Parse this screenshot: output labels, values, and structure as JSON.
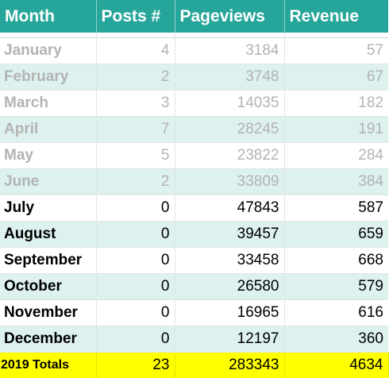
{
  "table": {
    "headers": {
      "month": "Month",
      "posts": "Posts #",
      "pageviews": "Pageviews",
      "revenue": "Revenue"
    },
    "rows": [
      {
        "month": "January",
        "posts": "4",
        "pageviews": "3184",
        "revenue": "57",
        "style": "past"
      },
      {
        "month": "February",
        "posts": "2",
        "pageviews": "3748",
        "revenue": "67",
        "style": "past"
      },
      {
        "month": "March",
        "posts": "3",
        "pageviews": "14035",
        "revenue": "182",
        "style": "past"
      },
      {
        "month": "April",
        "posts": "7",
        "pageviews": "28245",
        "revenue": "191",
        "style": "past"
      },
      {
        "month": "May",
        "posts": "5",
        "pageviews": "23822",
        "revenue": "284",
        "style": "past"
      },
      {
        "month": "June",
        "posts": "2",
        "pageviews": "33809",
        "revenue": "384",
        "style": "past"
      },
      {
        "month": "July",
        "posts": "0",
        "pageviews": "47843",
        "revenue": "587",
        "style": "current"
      },
      {
        "month": "August",
        "posts": "0",
        "pageviews": "39457",
        "revenue": "659",
        "style": "current"
      },
      {
        "month": "September",
        "posts": "0",
        "pageviews": "33458",
        "revenue": "668",
        "style": "current"
      },
      {
        "month": "October",
        "posts": "0",
        "pageviews": "26580",
        "revenue": "579",
        "style": "current"
      },
      {
        "month": "November",
        "posts": "0",
        "pageviews": "16965",
        "revenue": "616",
        "style": "current"
      },
      {
        "month": "December",
        "posts": "0",
        "pageviews": "12197",
        "revenue": "360",
        "style": "current"
      }
    ],
    "totals": {
      "label": "2019 Totals",
      "posts": "23",
      "pageviews": "283343",
      "revenue": "4634"
    }
  },
  "colors": {
    "header_bg": "#26a69a",
    "header_text": "#ffffff",
    "alt_row_bg": "#ddf1ef",
    "past_text": "#b3b3b3",
    "current_text": "#000000",
    "totals_bg": "#ffff00"
  }
}
